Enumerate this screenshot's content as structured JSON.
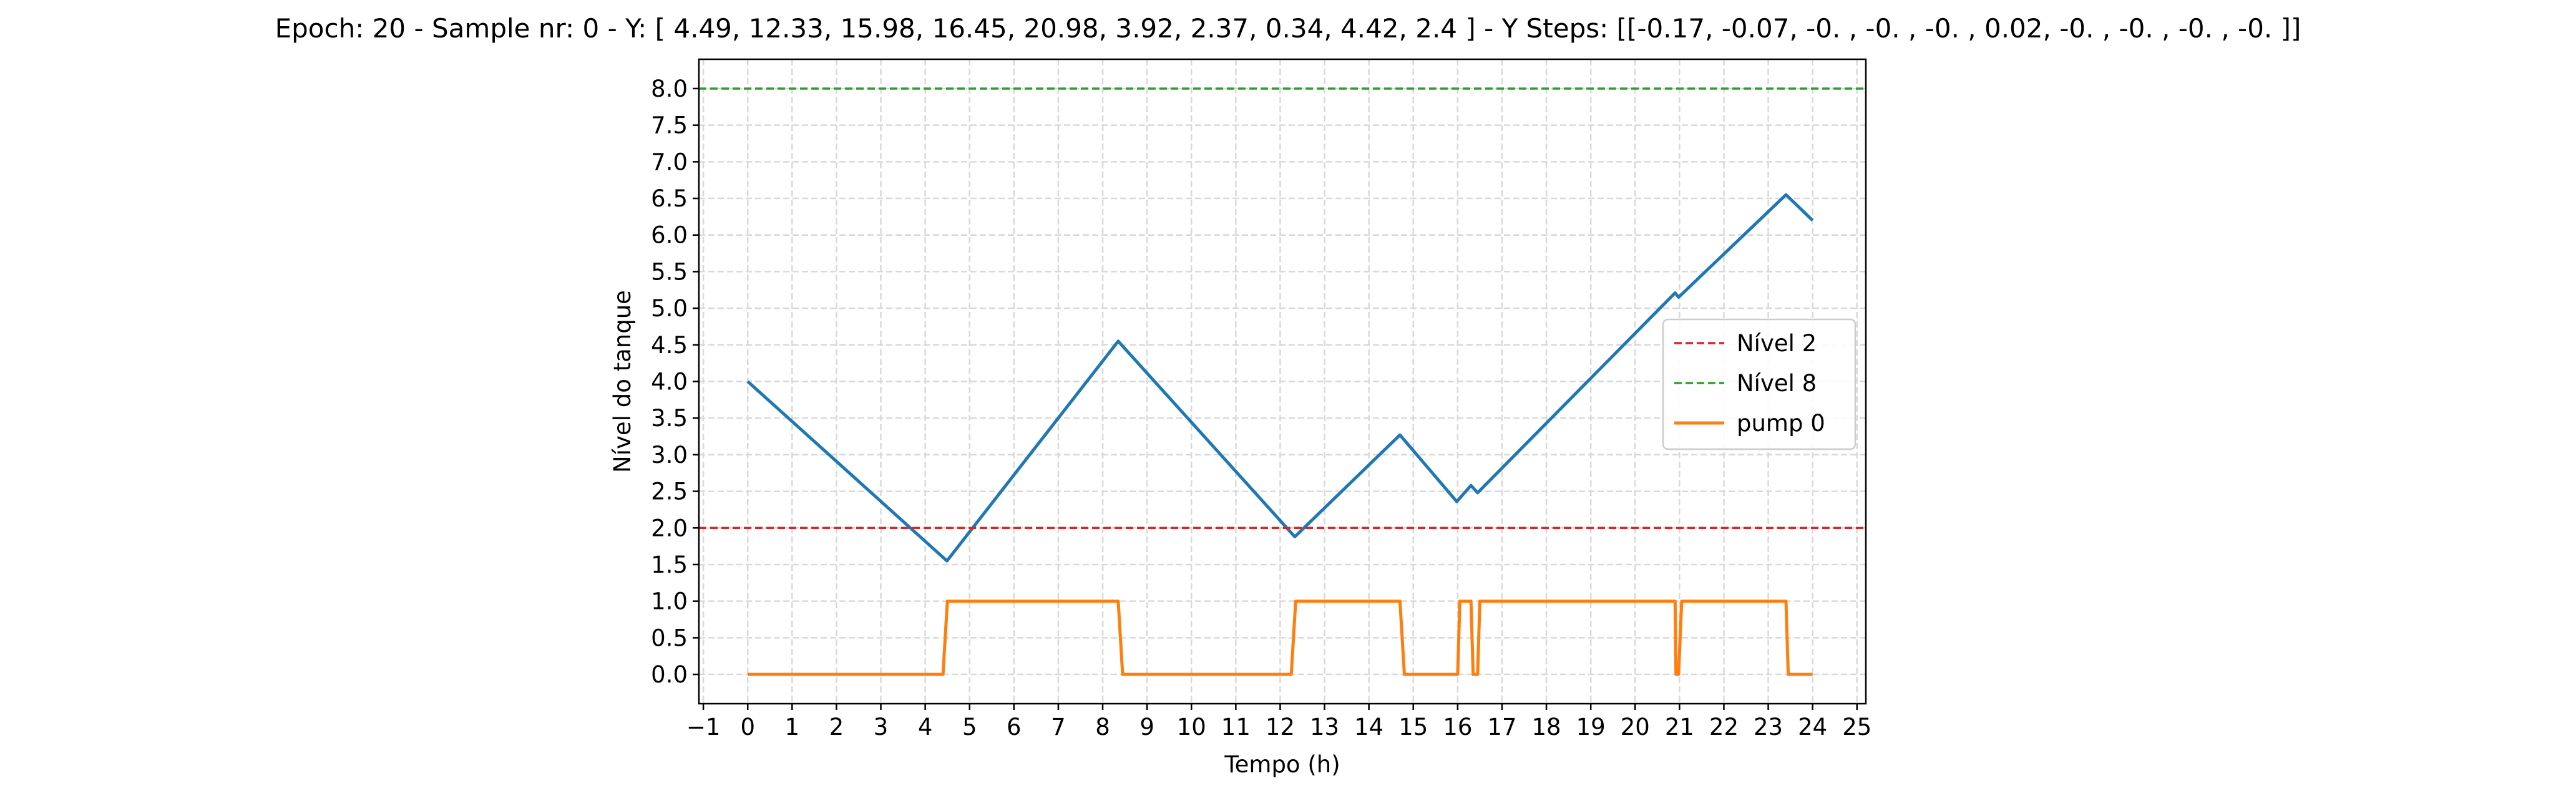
{
  "chart_data": {
    "type": "line",
    "title": "Epoch: 20 - Sample nr: 0 - Y: [ 4.49, 12.33, 15.98, 16.45, 20.98,  3.92,  2.37,  0.34,  4.42,  2.4 ] - Y Steps: [[-0.17, -0.07, -0.  , -0.  , -0.  ,  0.02, -0.  , -0.  , -0.  , -0.  ]]",
    "xlabel": "Tempo (h)",
    "ylabel": "Nível do tanque",
    "xlim": [
      -1.1,
      25.2
    ],
    "ylim": [
      -0.4,
      8.4
    ],
    "xticks": [
      -1,
      0,
      1,
      2,
      3,
      4,
      5,
      6,
      7,
      8,
      9,
      10,
      11,
      12,
      13,
      14,
      15,
      16,
      17,
      18,
      19,
      20,
      21,
      22,
      23,
      24,
      25
    ],
    "xtick_labels": [
      "−1",
      "0",
      "1",
      "2",
      "3",
      "4",
      "5",
      "6",
      "7",
      "8",
      "9",
      "10",
      "11",
      "12",
      "13",
      "14",
      "15",
      "16",
      "17",
      "18",
      "19",
      "20",
      "21",
      "22",
      "23",
      "24",
      "25"
    ],
    "yticks": [
      0.0,
      0.5,
      1.0,
      1.5,
      2.0,
      2.5,
      3.0,
      3.5,
      4.0,
      4.5,
      5.0,
      5.5,
      6.0,
      6.5,
      7.0,
      7.5,
      8.0
    ],
    "ytick_labels": [
      "0.0",
      "0.5",
      "1.0",
      "1.5",
      "2.0",
      "2.5",
      "3.0",
      "3.5",
      "4.0",
      "4.5",
      "5.0",
      "5.5",
      "6.0",
      "6.5",
      "7.0",
      "7.5",
      "8.0"
    ],
    "grid": true,
    "legend_position": "center-right",
    "series": [
      {
        "color": "#1f77b4",
        "style": "solid",
        "in_legend": false,
        "x": [
          0,
          4.49,
          8.35,
          12.33,
          14.7,
          15.98,
          16.3,
          16.45,
          20.9,
          20.98,
          23.4,
          24
        ],
        "y": [
          4.0,
          1.55,
          4.55,
          1.88,
          3.27,
          2.36,
          2.58,
          2.48,
          5.21,
          5.15,
          6.55,
          6.2
        ]
      },
      {
        "name": "Nível 2",
        "color": "#d62728",
        "style": "dashed",
        "in_legend": true,
        "x": [
          -1.1,
          25.2
        ],
        "y": [
          2.0,
          2.0
        ]
      },
      {
        "name": "Nível 8",
        "color": "#2ca02c",
        "style": "dashed",
        "in_legend": true,
        "x": [
          -1.1,
          25.2
        ],
        "y": [
          8.0,
          8.0
        ]
      },
      {
        "name": "pump 0",
        "color": "#ff7f0e",
        "style": "solid",
        "in_legend": true,
        "x": [
          0,
          4.4,
          4.5,
          8.35,
          8.45,
          12.25,
          12.35,
          14.7,
          14.8,
          16.0,
          16.05,
          16.3,
          16.35,
          16.45,
          16.5,
          20.9,
          20.92,
          20.98,
          21.05,
          23.4,
          23.45,
          24
        ],
        "y": [
          0,
          0,
          1,
          1,
          0,
          0,
          1,
          1,
          0,
          0,
          1,
          1,
          0,
          0,
          1,
          1,
          0,
          0,
          1,
          1,
          0,
          0
        ]
      }
    ]
  }
}
